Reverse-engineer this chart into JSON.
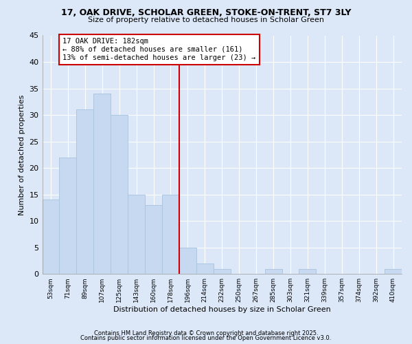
{
  "title1": "17, OAK DRIVE, SCHOLAR GREEN, STOKE-ON-TRENT, ST7 3LY",
  "title2": "Size of property relative to detached houses in Scholar Green",
  "xlabel": "Distribution of detached houses by size in Scholar Green",
  "ylabel": "Number of detached properties",
  "categories": [
    "53sqm",
    "71sqm",
    "89sqm",
    "107sqm",
    "125sqm",
    "143sqm",
    "160sqm",
    "178sqm",
    "196sqm",
    "214sqm",
    "232sqm",
    "250sqm",
    "267sqm",
    "285sqm",
    "303sqm",
    "321sqm",
    "339sqm",
    "357sqm",
    "374sqm",
    "392sqm",
    "410sqm"
  ],
  "values": [
    14,
    22,
    31,
    34,
    30,
    15,
    13,
    15,
    5,
    2,
    1,
    0,
    0,
    1,
    0,
    1,
    0,
    0,
    0,
    0,
    1
  ],
  "bar_color": "#c6d9f0",
  "bar_edge_color": "#adc6e0",
  "vline_x_idx": 7,
  "vline_label": "17 OAK DRIVE: 182sqm",
  "annotation_line1": "← 88% of detached houses are smaller (161)",
  "annotation_line2": "13% of semi-detached houses are larger (23) →",
  "annotation_box_color": "#ffffff",
  "annotation_box_edge": "#cc0000",
  "vline_color": "#cc0000",
  "ylim": [
    0,
    45
  ],
  "yticks": [
    0,
    5,
    10,
    15,
    20,
    25,
    30,
    35,
    40,
    45
  ],
  "footer1": "Contains HM Land Registry data © Crown copyright and database right 2025.",
  "footer2": "Contains public sector information licensed under the Open Government Licence v3.0.",
  "bg_color": "#dce8f8"
}
